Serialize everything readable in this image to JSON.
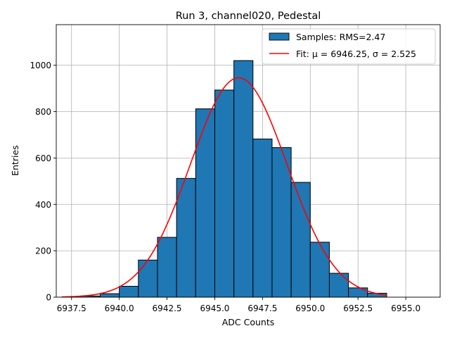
{
  "chart_data": {
    "type": "bar",
    "title": "Run 3, channel020, Pedestal",
    "xlabel": "ADC Counts",
    "ylabel": "Entries",
    "xlim": [
      6936.7,
      6956.8
    ],
    "ylim": [
      0,
      1175
    ],
    "grid": true,
    "legend_position": "top-right",
    "xticks": [
      6937.5,
      6940.0,
      6942.5,
      6945.0,
      6947.5,
      6950.0,
      6952.5,
      6955.0
    ],
    "xtick_labels": [
      "6937.5",
      "6940.0",
      "6942.5",
      "6945.0",
      "6947.5",
      "6950.0",
      "6952.5",
      "6955.0"
    ],
    "yticks": [
      0,
      200,
      400,
      600,
      800,
      1000
    ],
    "ytick_labels": [
      "0",
      "200",
      "400",
      "600",
      "800",
      "1000"
    ],
    "histogram": {
      "name": "Samples: RMS=2.47",
      "color": "#1f77b4",
      "edgecolor": "#000000",
      "bin_edges": [
        6937,
        6938,
        6939,
        6940,
        6941,
        6942,
        6943,
        6944,
        6945,
        6946,
        6947,
        6948,
        6949,
        6950,
        6951,
        6952,
        6953,
        6954
      ],
      "counts": [
        1,
        5,
        15,
        47,
        160,
        258,
        512,
        812,
        893,
        1020,
        682,
        645,
        495,
        237,
        103,
        40,
        17
      ]
    },
    "fit": {
      "name": "Fit: μ = 6946.25, σ = 2.525",
      "color": "#ff0000",
      "mu": 6946.25,
      "sigma": 2.525,
      "amplitude": 946,
      "x_range": [
        6937,
        6954
      ]
    }
  },
  "legend": {
    "hist_label_prefix": "Samples: RMS=2.47",
    "fit_label": "Fit: μ = 6946.25, σ = 2.525"
  }
}
